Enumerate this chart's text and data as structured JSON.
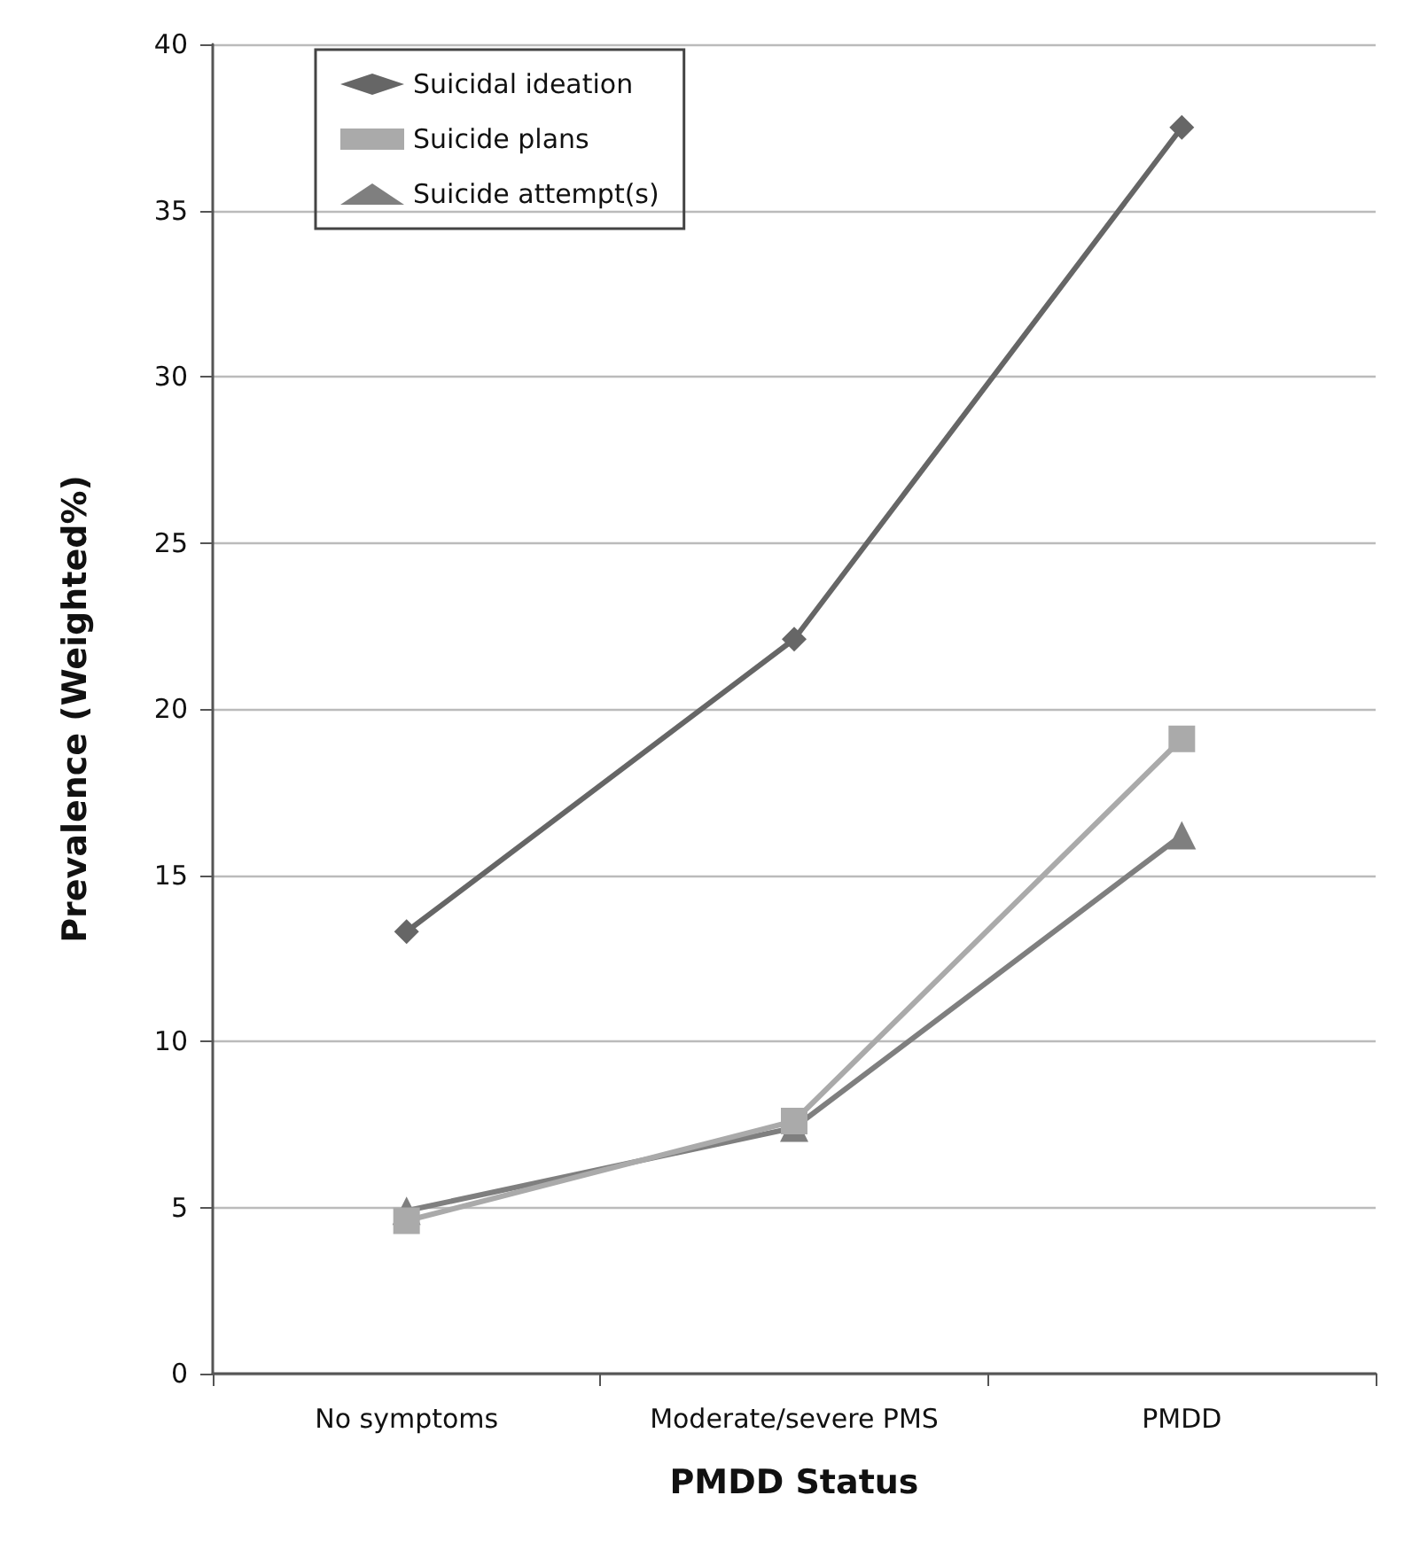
{
  "chart_data": {
    "type": "line",
    "xlabel": "PMDD Status",
    "ylabel": "Prevalence (Weighted%)",
    "categories": [
      "No symptoms",
      "Moderate/severe PMS",
      "PMDD"
    ],
    "series": [
      {
        "name": "Suicidal ideation",
        "color": "#666666",
        "marker": "diamond",
        "values": [
          13.3,
          22.1,
          37.5
        ]
      },
      {
        "name": "Suicide plans",
        "color": "#aaaaaa",
        "marker": "square",
        "values": [
          4.6,
          7.6,
          19.1
        ]
      },
      {
        "name": "Suicide attempt(s)",
        "color": "#7f7f7f",
        "marker": "triangle",
        "values": [
          4.9,
          7.4,
          16.2
        ]
      }
    ],
    "ylim": [
      0,
      40
    ],
    "yticks": [
      0,
      5,
      10,
      15,
      20,
      25,
      30,
      35,
      40
    ],
    "grid": "y",
    "legend": "top left",
    "line_style": "solid"
  }
}
